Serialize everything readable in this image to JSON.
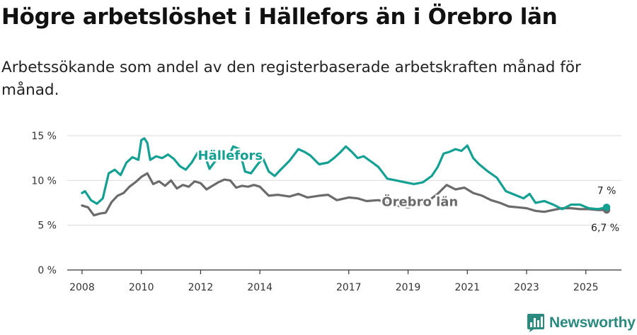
{
  "header": {
    "title": "Högre arbetslöshet i Hällefors än i Örebro län",
    "subtitle": "Arbetssökande som andel av den registerbaserade arbetskraften månad för månad."
  },
  "logo": {
    "text": "Newsworthy",
    "icon": "newsworthy-chart-icon"
  },
  "colors": {
    "hallefors": "#14a092",
    "orebro": "#6b6b6b",
    "grid": "#dcdcdc",
    "axis": "#333333"
  },
  "chart_data": {
    "type": "line",
    "title": "Högre arbetslöshet i Hällefors än i Örebro län",
    "subtitle": "Arbetssökande som andel av den registerbaserade arbetskraften månad för månad.",
    "xlabel": "",
    "ylabel": "",
    "xlim": [
      2007.5,
      2026.2
    ],
    "ylim": [
      0,
      15
    ],
    "grid": true,
    "y_ticks": [
      0,
      5,
      10,
      15
    ],
    "y_tick_labels": [
      "0 %",
      "5 %",
      "10 %",
      "15 %"
    ],
    "x_ticks": [
      2008,
      2010,
      2012,
      2014,
      2017,
      2019,
      2021,
      2023,
      2025
    ],
    "x_tick_labels": [
      "2008",
      "2010",
      "2012",
      "2014",
      "2017",
      "2019",
      "2021",
      "2023",
      "2025"
    ],
    "series": [
      {
        "name": "Hällefors",
        "label": "Hällefors",
        "color": "#14a092",
        "end_label": "7 %",
        "x": [
          2008.0,
          2008.1,
          2008.3,
          2008.5,
          2008.7,
          2008.9,
          2009.1,
          2009.3,
          2009.5,
          2009.7,
          2009.9,
          2010.0,
          2010.1,
          2010.2,
          2010.3,
          2010.5,
          2010.7,
          2010.9,
          2011.1,
          2011.3,
          2011.5,
          2011.7,
          2011.9,
          2012.1,
          2012.3,
          2012.5,
          2012.7,
          2012.9,
          2013.1,
          2013.3,
          2013.5,
          2013.7,
          2013.9,
          2014.1,
          2014.3,
          2014.5,
          2014.7,
          2015.0,
          2015.3,
          2015.5,
          2015.7,
          2016.0,
          2016.3,
          2016.5,
          2016.7,
          2016.9,
          2017.1,
          2017.3,
          2017.5,
          2017.8,
          2018.0,
          2018.3,
          2018.6,
          2018.9,
          2019.2,
          2019.5,
          2019.8,
          2020.0,
          2020.2,
          2020.4,
          2020.6,
          2020.8,
          2021.0,
          2021.2,
          2021.4,
          2021.7,
          2022.0,
          2022.3,
          2022.6,
          2022.9,
          2023.1,
          2023.3,
          2023.6,
          2023.9,
          2024.2,
          2024.5,
          2024.8,
          2025.1,
          2025.4,
          2025.7
        ],
        "y": [
          8.6,
          8.8,
          7.8,
          7.4,
          8.0,
          10.8,
          11.2,
          10.6,
          12.0,
          12.6,
          12.3,
          14.5,
          14.7,
          14.2,
          12.3,
          12.7,
          12.5,
          12.9,
          12.4,
          11.6,
          11.2,
          12.0,
          13.1,
          13.2,
          11.3,
          12.2,
          12.8,
          12.4,
          13.8,
          13.5,
          11.0,
          10.8,
          11.7,
          12.5,
          11.0,
          10.5,
          11.2,
          12.2,
          13.5,
          13.2,
          12.8,
          11.8,
          12.0,
          12.5,
          13.1,
          13.8,
          13.2,
          12.5,
          12.7,
          12.0,
          11.5,
          10.2,
          10.0,
          9.8,
          9.6,
          9.8,
          10.5,
          11.5,
          13.0,
          13.2,
          13.5,
          13.3,
          13.9,
          12.5,
          11.8,
          11.0,
          10.3,
          8.8,
          8.4,
          8.0,
          8.5,
          7.5,
          7.7,
          7.3,
          6.8,
          7.3,
          7.3,
          6.9,
          6.8,
          7.0
        ]
      },
      {
        "name": "Örebro län",
        "label": "Örebro län",
        "color": "#6b6b6b",
        "end_label": "6,7 %",
        "x": [
          2008.0,
          2008.2,
          2008.4,
          2008.6,
          2008.8,
          2009.0,
          2009.2,
          2009.4,
          2009.6,
          2009.8,
          2010.0,
          2010.2,
          2010.4,
          2010.6,
          2010.8,
          2011.0,
          2011.2,
          2011.4,
          2011.6,
          2011.8,
          2012.0,
          2012.2,
          2012.4,
          2012.6,
          2012.8,
          2013.0,
          2013.2,
          2013.4,
          2013.6,
          2013.8,
          2014.0,
          2014.3,
          2014.6,
          2015.0,
          2015.3,
          2015.6,
          2016.0,
          2016.3,
          2016.6,
          2017.0,
          2017.3,
          2017.6,
          2018.0,
          2018.3,
          2018.6,
          2019.0,
          2019.3,
          2019.6,
          2020.0,
          2020.3,
          2020.6,
          2020.9,
          2021.2,
          2021.5,
          2021.8,
          2022.1,
          2022.4,
          2022.7,
          2023.0,
          2023.3,
          2023.6,
          2023.9,
          2024.2,
          2024.5,
          2024.8,
          2025.1,
          2025.4,
          2025.7
        ],
        "y": [
          7.2,
          7.0,
          6.1,
          6.3,
          6.4,
          7.6,
          8.3,
          8.6,
          9.3,
          9.8,
          10.4,
          10.8,
          9.6,
          9.9,
          9.4,
          10.0,
          9.1,
          9.5,
          9.3,
          9.9,
          9.7,
          9.0,
          9.4,
          9.8,
          10.1,
          10.0,
          9.2,
          9.4,
          9.3,
          9.5,
          9.3,
          8.3,
          8.4,
          8.2,
          8.5,
          8.1,
          8.3,
          8.4,
          7.8,
          8.1,
          8.0,
          7.7,
          7.8,
          7.5,
          7.2,
          7.0,
          7.2,
          7.5,
          8.5,
          9.5,
          9.0,
          9.2,
          8.6,
          8.3,
          7.8,
          7.5,
          7.1,
          7.0,
          6.9,
          6.6,
          6.5,
          6.7,
          6.9,
          6.9,
          6.8,
          6.8,
          6.7,
          6.7
        ]
      }
    ]
  }
}
